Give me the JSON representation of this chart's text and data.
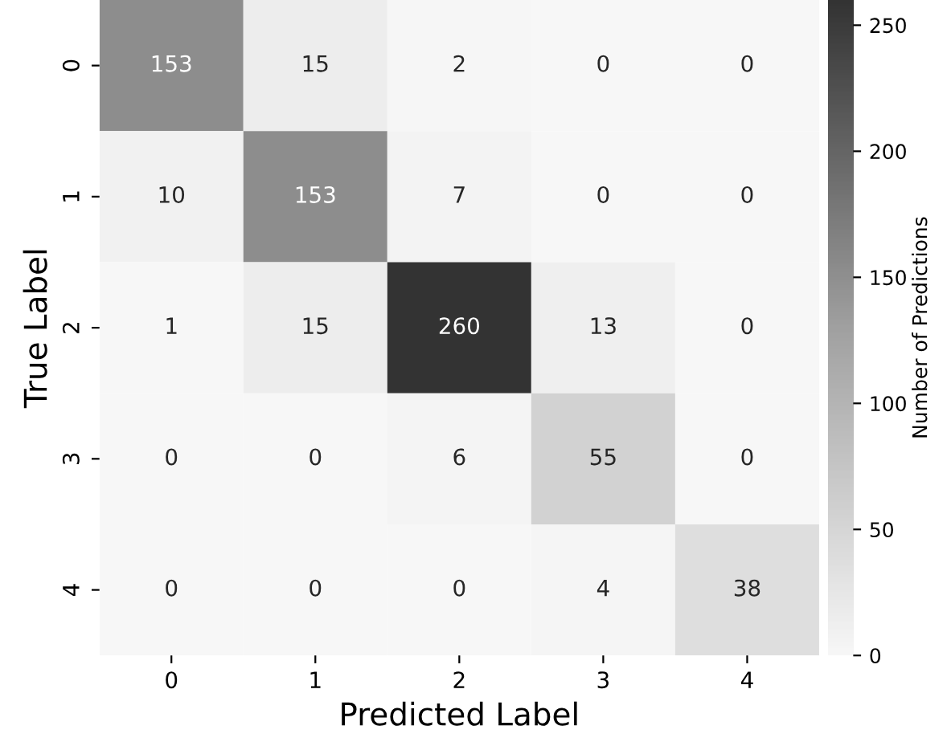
{
  "chart_data": {
    "type": "heatmap",
    "xlabel": "Predicted Label",
    "ylabel": "True Label",
    "clabel": "Number of Predictions",
    "categories": [
      "0",
      "1",
      "2",
      "3",
      "4"
    ],
    "y_categories": [
      "0",
      "1",
      "2",
      "3",
      "4"
    ],
    "cells": [
      [
        153,
        15,
        2,
        0,
        0
      ],
      [
        10,
        153,
        7,
        0,
        0
      ],
      [
        1,
        15,
        260,
        13,
        0
      ],
      [
        0,
        0,
        6,
        55,
        0
      ],
      [
        0,
        0,
        0,
        4,
        38
      ]
    ],
    "clim": [
      0,
      260
    ],
    "cticks": [
      0,
      50,
      100,
      150,
      200,
      250
    ],
    "data_labels": true
  }
}
